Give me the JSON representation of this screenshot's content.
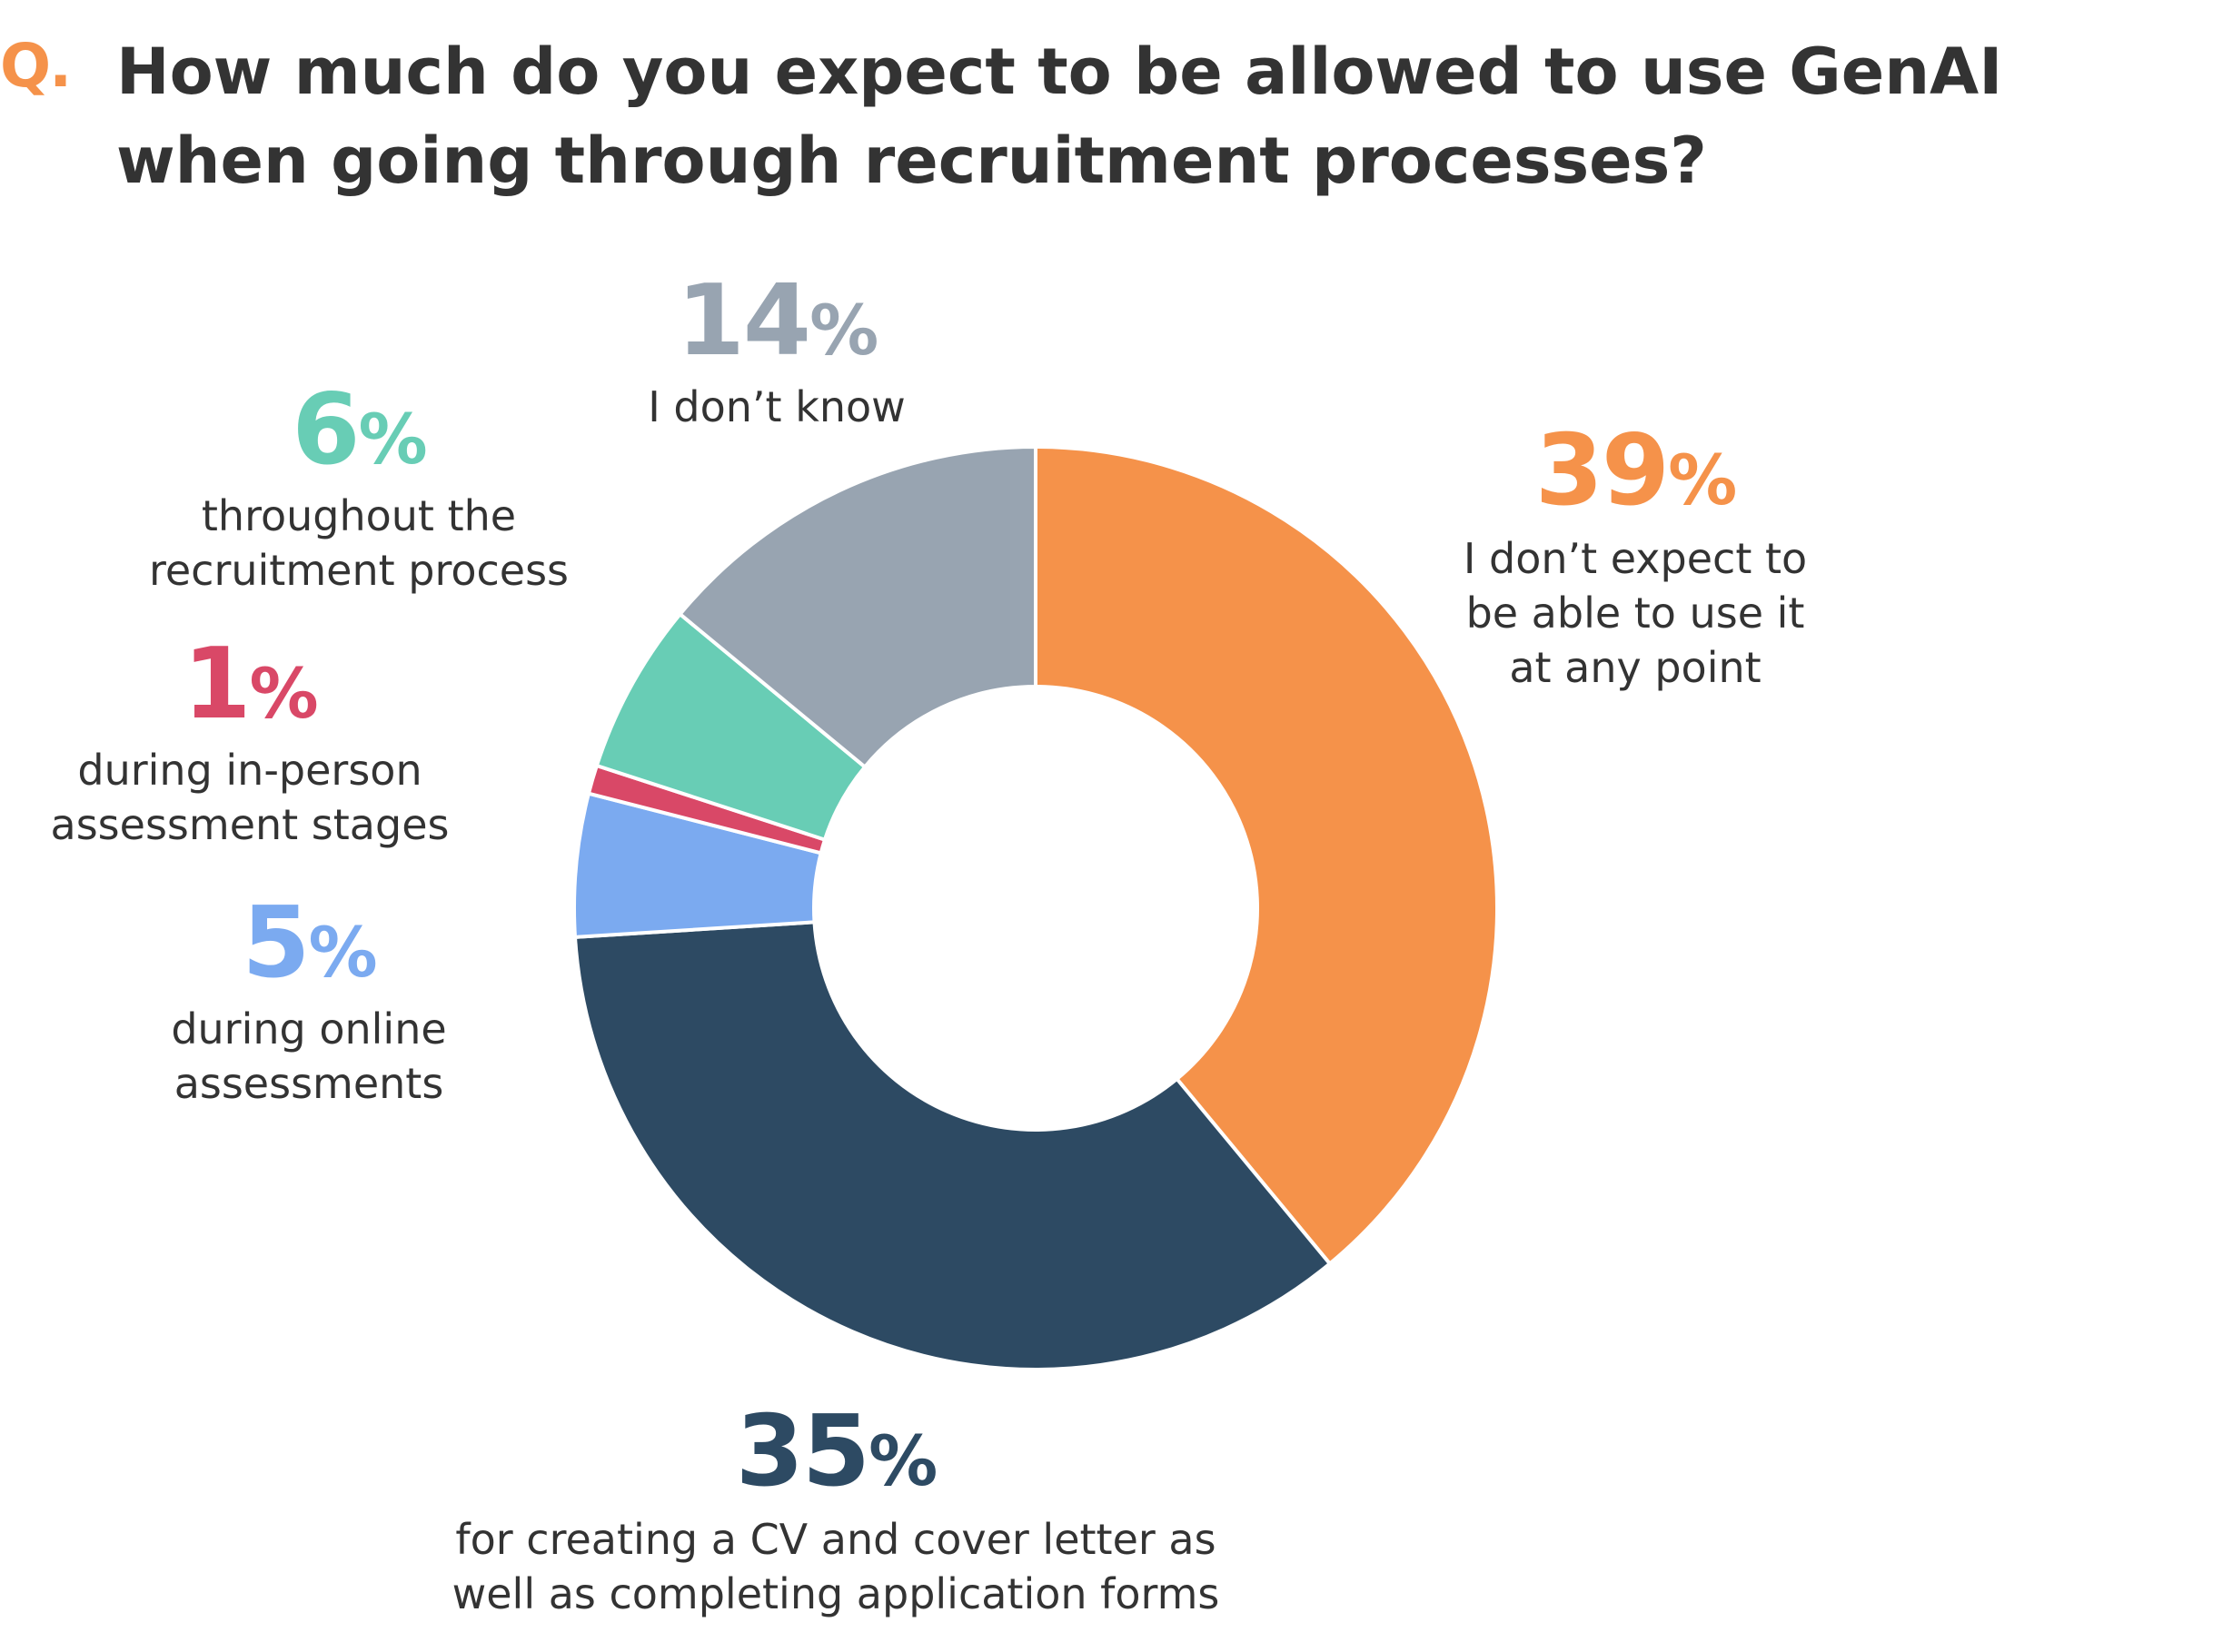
{
  "header": {
    "q_mark": "Q.",
    "title": "How much do you expect to be allowed to use GenAI when going through recruitment processes?"
  },
  "chart_data": {
    "type": "pie",
    "variant": "donut",
    "title": "How much do you expect to be allowed to use GenAI when going through recruitment processes?",
    "slices": [
      {
        "label": "I don’t expect to be able to use it at any point",
        "value": 39,
        "color": "#f5924a"
      },
      {
        "label": "for creating a CV and cover letter as well as completing application forms",
        "value": 35,
        "color": "#2d4a63"
      },
      {
        "label": "during online assessments",
        "value": 5,
        "color": "#7baaf0"
      },
      {
        "label": "during in-person assessment stages",
        "value": 1,
        "color": "#d94867"
      },
      {
        "label": "throughout the recruitment process",
        "value": 6,
        "color": "#68cdb5"
      },
      {
        "label": "I don’t know",
        "value": 14,
        "color": "#98a4b1"
      }
    ]
  },
  "labels": {
    "s0": {
      "num": "39",
      "sym": "%",
      "lines": "I don’t expect to\nbe able to use it\nat any point"
    },
    "s1": {
      "num": "35",
      "sym": "%",
      "lines": "for creating a CV and cover letter as\nwell as completing application forms"
    },
    "s2": {
      "num": "5",
      "sym": "%",
      "lines": "during online\nassessments"
    },
    "s3": {
      "num": "1",
      "sym": "%",
      "lines": "during in-person\nassessment stages"
    },
    "s4": {
      "num": "6",
      "sym": "%",
      "lines": "throughout the\nrecruitment process"
    },
    "s5": {
      "num": "14",
      "sym": "%",
      "lines": "I don’t know"
    }
  }
}
